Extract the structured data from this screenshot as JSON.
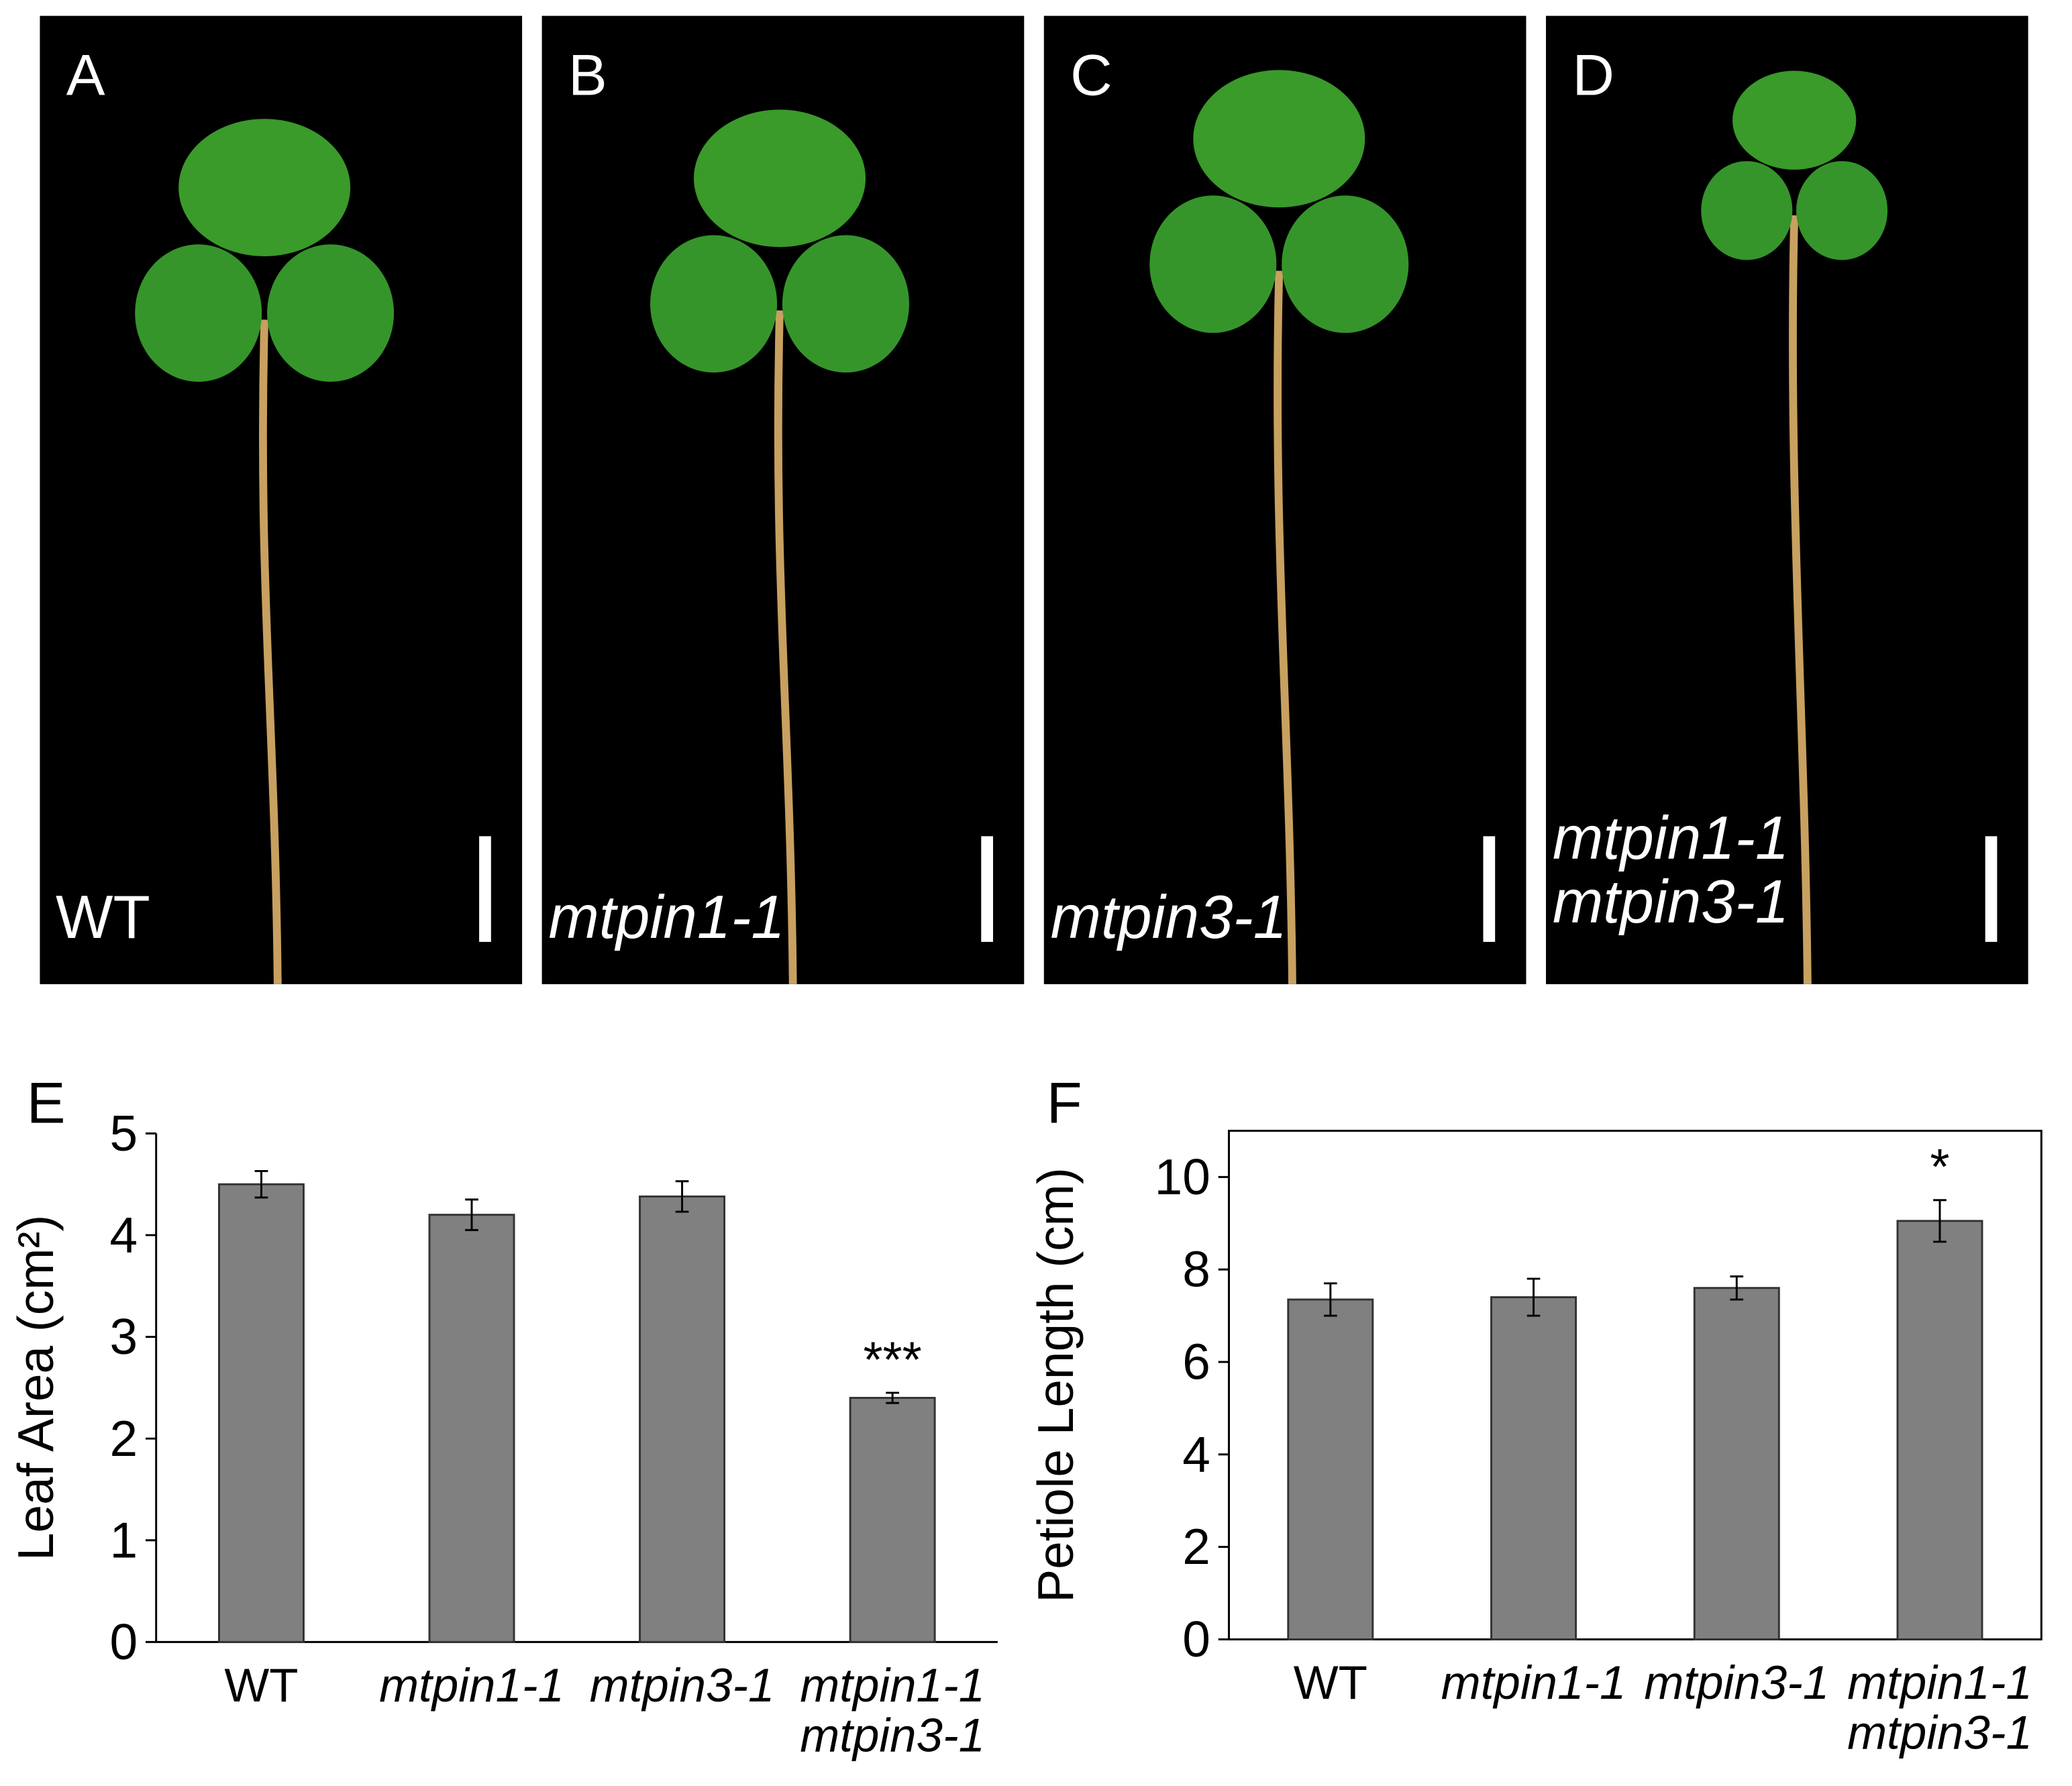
{
  "panels": [
    {
      "letter": "A",
      "genotype": "WT"
    },
    {
      "letter": "B",
      "genotype": "mtpin1-1"
    },
    {
      "letter": "C",
      "genotype": "mtpin3-1"
    },
    {
      "letter": "D",
      "genotype": "mtpin1-1\nmtpin3-1"
    }
  ],
  "chart_data": [
    {
      "type": "bar",
      "panel_label": "E",
      "y_label": "Leaf Area (cm²)",
      "categories": [
        "WT",
        "mtpin1-1",
        "mtpin3-1",
        "mtpin1-1\nmtpin3-1"
      ],
      "values": [
        4.5,
        4.2,
        4.38,
        2.4
      ],
      "errors": [
        0.13,
        0.15,
        0.15,
        0.05
      ],
      "value_annotations": [
        null,
        null,
        null,
        "***"
      ],
      "color": "#808080",
      "ylim": [
        0,
        5
      ],
      "yticks": [
        0,
        1,
        2,
        3,
        4,
        5
      ]
    },
    {
      "type": "bar",
      "panel_label": "F",
      "y_label": "Petiole Length (cm)",
      "categories": [
        "WT",
        "mtpin1-1",
        "mtpin3-1",
        "mtpin1-1\nmtpin3-1"
      ],
      "values": [
        7.35,
        7.4,
        7.6,
        9.05
      ],
      "errors": [
        0.35,
        0.4,
        0.25,
        0.45
      ],
      "value_annotations": [
        null,
        null,
        null,
        "*"
      ],
      "color": "#808080",
      "ylim": [
        0,
        11
      ],
      "yticks": [
        0,
        2,
        4,
        6,
        8,
        10
      ]
    }
  ]
}
